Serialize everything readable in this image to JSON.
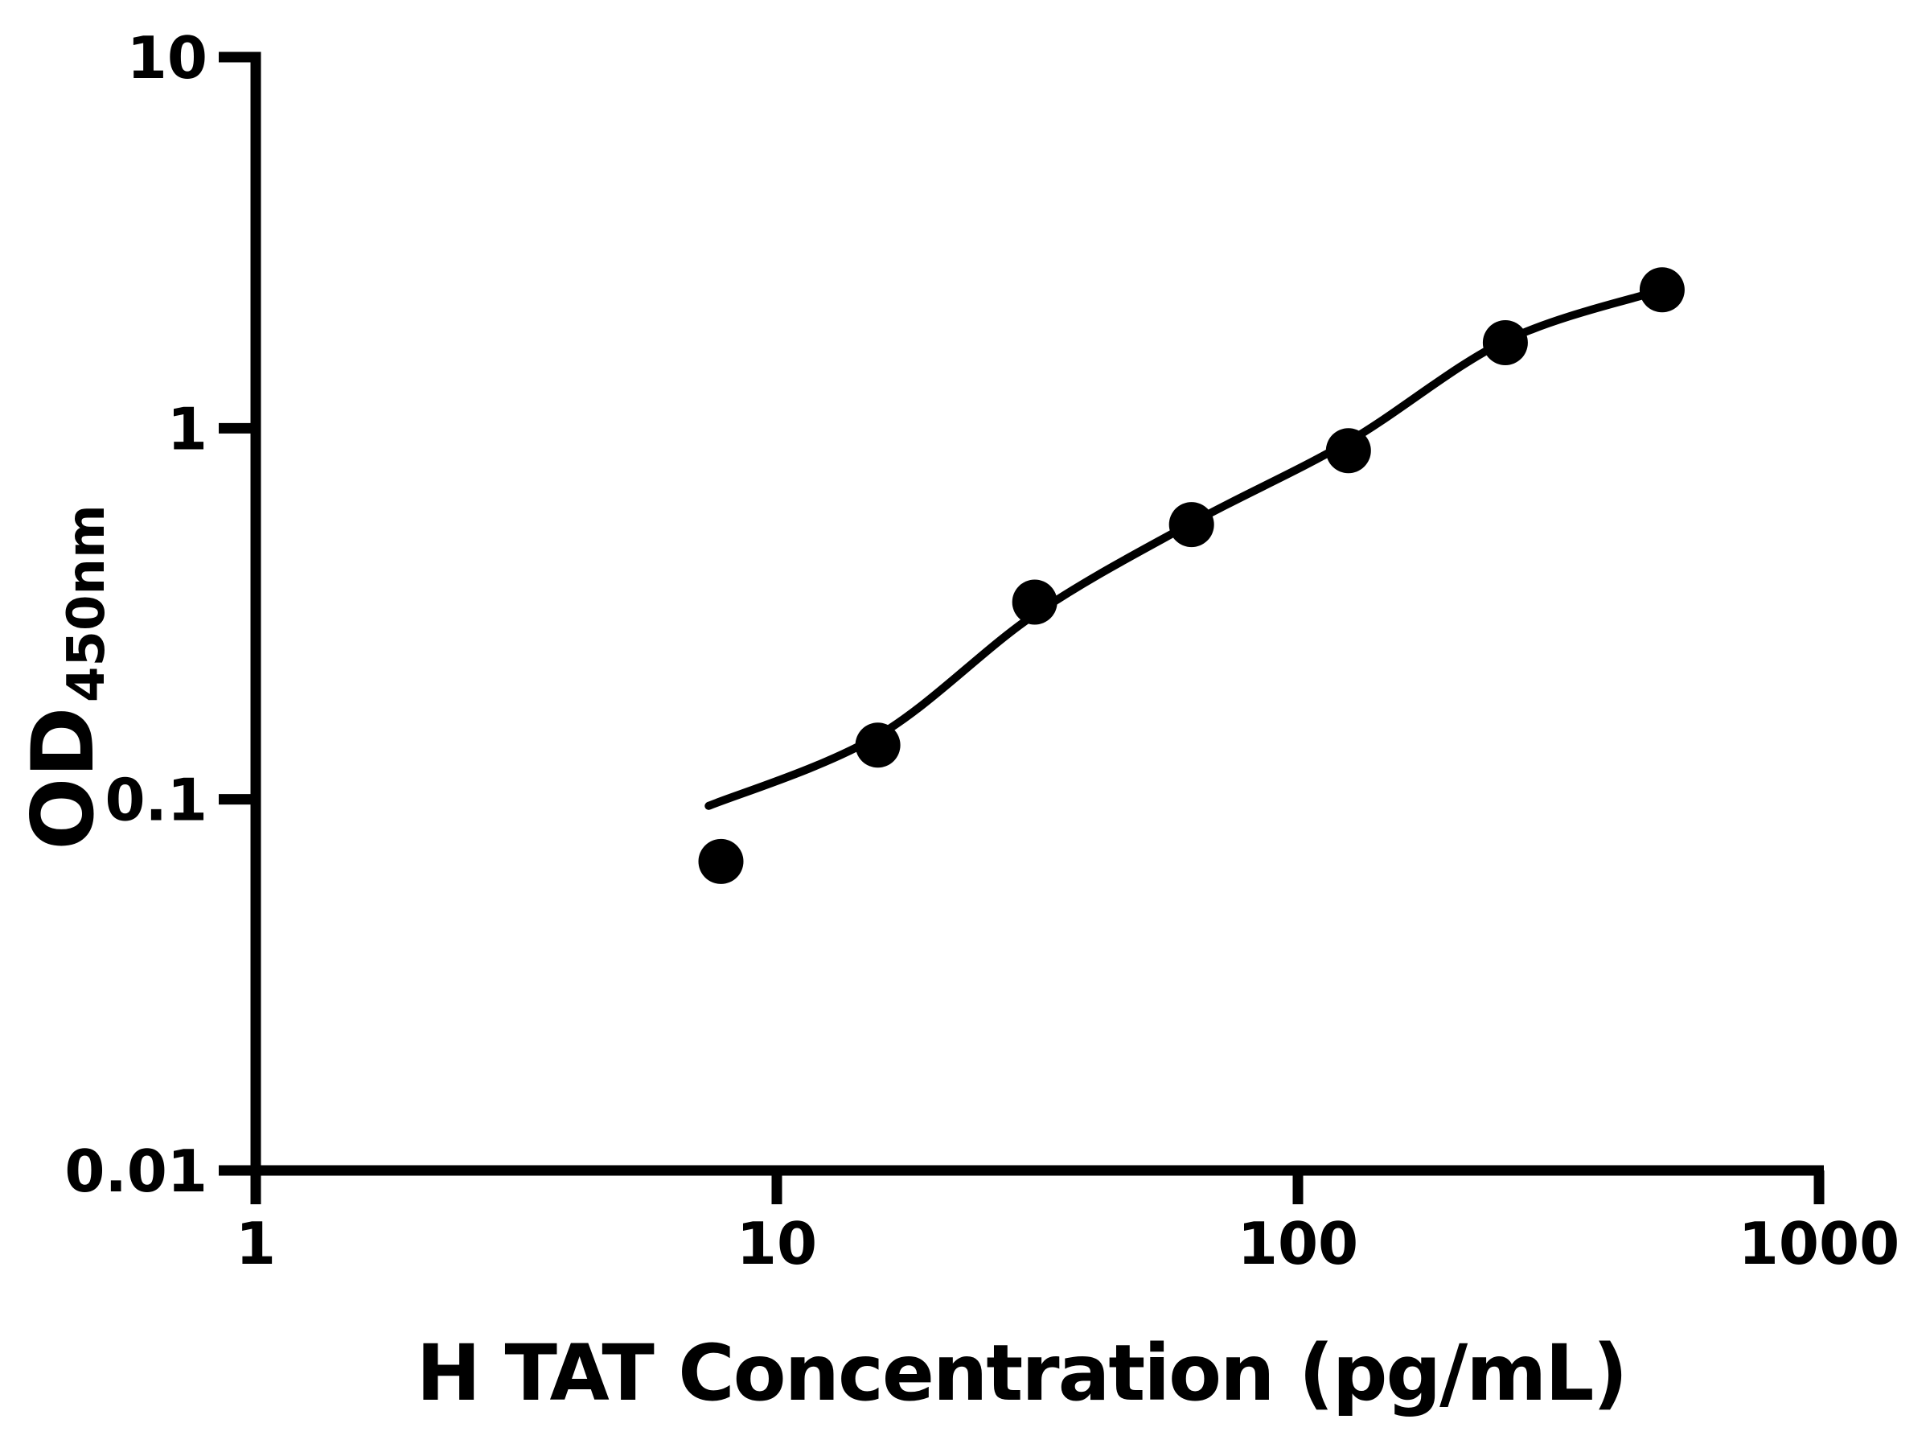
{
  "figure": {
    "background_color": "#ffffff",
    "ink_color": "#000000"
  },
  "chart_data": {
    "type": "scatter",
    "title": "",
    "xlabel": "H TAT Concentration (pg/mL)",
    "ylabel_main": "OD",
    "ylabel_sub": "450nm",
    "x_scale": "log",
    "y_scale": "log",
    "xlim": [
      1,
      1000
    ],
    "ylim": [
      0.01,
      10
    ],
    "grid": false,
    "legend": false,
    "x_ticks": [
      {
        "value": 1,
        "label": "1"
      },
      {
        "value": 10,
        "label": "10"
      },
      {
        "value": 100,
        "label": "100"
      },
      {
        "value": 1000,
        "label": "1000"
      }
    ],
    "y_ticks": [
      {
        "value": 10,
        "label": "10"
      },
      {
        "value": 1,
        "label": "1"
      },
      {
        "value": 0.1,
        "label": "0.1"
      },
      {
        "value": 0.01,
        "label": "0.01"
      }
    ],
    "series": [
      {
        "name": "standard-points",
        "type": "scatter",
        "marker": "circle",
        "color": "#000000",
        "points": [
          {
            "x": 7.8125,
            "y": 0.068
          },
          {
            "x": 15.625,
            "y": 0.14
          },
          {
            "x": 31.25,
            "y": 0.34
          },
          {
            "x": 62.5,
            "y": 0.55
          },
          {
            "x": 125,
            "y": 0.87
          },
          {
            "x": 250,
            "y": 1.7
          },
          {
            "x": 500,
            "y": 2.36
          }
        ]
      },
      {
        "name": "fit-curve",
        "type": "line",
        "color": "#000000",
        "points": [
          {
            "x": 7.4,
            "y": 0.096
          },
          {
            "x": 15.6,
            "y": 0.148
          },
          {
            "x": 31.25,
            "y": 0.315
          },
          {
            "x": 62.5,
            "y": 0.555
          },
          {
            "x": 125,
            "y": 0.92
          },
          {
            "x": 250,
            "y": 1.72
          },
          {
            "x": 500,
            "y": 2.36
          }
        ]
      }
    ]
  }
}
